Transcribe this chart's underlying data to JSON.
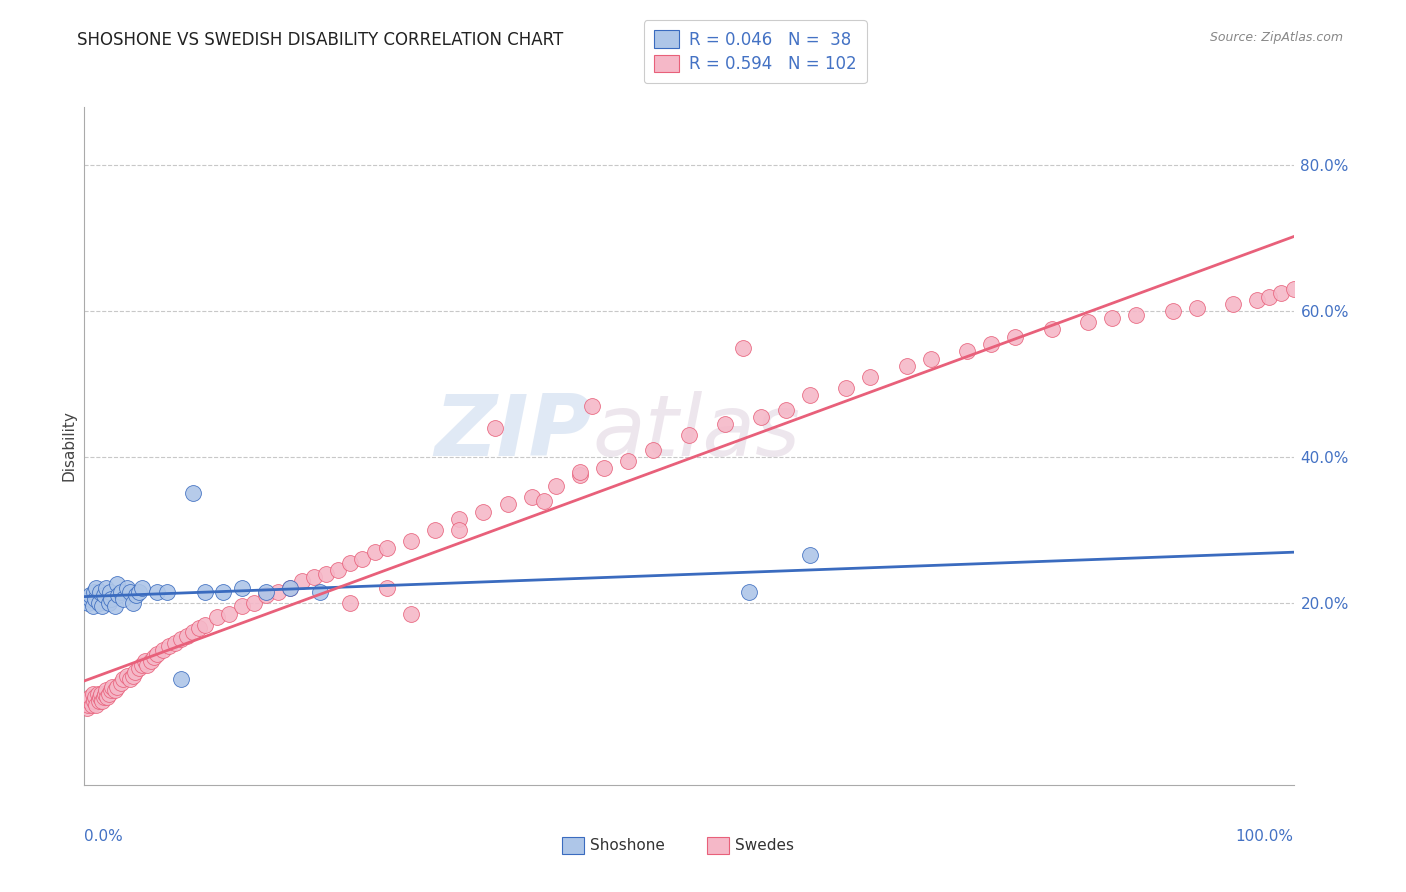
{
  "title": "SHOSHONE VS SWEDISH DISABILITY CORRELATION CHART",
  "source": "Source: ZipAtlas.com",
  "ylabel": "Disability",
  "legend_shoshone_label": "R = 0.046   N =  38",
  "legend_swedes_label": "R = 0.594   N = 102",
  "shoshone_color": "#aec6e8",
  "swedes_color": "#f5b8c8",
  "shoshone_line_color": "#3a6bbf",
  "swedes_line_color": "#e8607a",
  "watermark_zip": "ZIP",
  "watermark_atlas": "atlas",
  "xlim": [
    0.0,
    1.0
  ],
  "ylim": [
    -0.05,
    0.88
  ],
  "ytick_vals": [
    0.2,
    0.4,
    0.6,
    0.8
  ],
  "ytick_labels": [
    "20.0%",
    "40.0%",
    "60.0%",
    "80.0%"
  ],
  "background_color": "#ffffff",
  "grid_color": "#c8c8c8",
  "tick_color": "#4472C4",
  "shoshone_x": [
    0.003,
    0.005,
    0.005,
    0.007,
    0.008,
    0.009,
    0.01,
    0.012,
    0.013,
    0.015,
    0.016,
    0.018,
    0.02,
    0.021,
    0.022,
    0.025,
    0.027,
    0.028,
    0.03,
    0.032,
    0.035,
    0.038,
    0.04,
    0.043,
    0.045,
    0.048,
    0.06,
    0.068,
    0.08,
    0.09,
    0.1,
    0.115,
    0.13,
    0.15,
    0.17,
    0.195,
    0.55,
    0.6
  ],
  "shoshone_y": [
    0.2,
    0.205,
    0.21,
    0.195,
    0.215,
    0.205,
    0.22,
    0.2,
    0.215,
    0.195,
    0.21,
    0.22,
    0.2,
    0.215,
    0.205,
    0.195,
    0.225,
    0.21,
    0.215,
    0.205,
    0.22,
    0.215,
    0.2,
    0.21,
    0.215,
    0.22,
    0.215,
    0.215,
    0.095,
    0.35,
    0.215,
    0.215,
    0.22,
    0.215,
    0.22,
    0.215,
    0.215,
    0.265
  ],
  "swedes_x": [
    0.002,
    0.003,
    0.004,
    0.005,
    0.006,
    0.007,
    0.008,
    0.009,
    0.01,
    0.011,
    0.012,
    0.013,
    0.014,
    0.015,
    0.016,
    0.017,
    0.018,
    0.019,
    0.02,
    0.022,
    0.023,
    0.025,
    0.027,
    0.03,
    0.032,
    0.035,
    0.038,
    0.04,
    0.042,
    0.045,
    0.048,
    0.05,
    0.052,
    0.055,
    0.058,
    0.06,
    0.065,
    0.07,
    0.075,
    0.08,
    0.085,
    0.09,
    0.095,
    0.1,
    0.11,
    0.12,
    0.13,
    0.14,
    0.15,
    0.16,
    0.17,
    0.18,
    0.19,
    0.2,
    0.21,
    0.22,
    0.23,
    0.24,
    0.25,
    0.27,
    0.29,
    0.31,
    0.33,
    0.35,
    0.37,
    0.39,
    0.41,
    0.43,
    0.45,
    0.47,
    0.5,
    0.53,
    0.56,
    0.58,
    0.6,
    0.63,
    0.65,
    0.68,
    0.7,
    0.73,
    0.75,
    0.77,
    0.8,
    0.83,
    0.85,
    0.87,
    0.9,
    0.92,
    0.95,
    0.97,
    0.98,
    0.99,
    1.0,
    0.42,
    0.545,
    0.34,
    0.31,
    0.27,
    0.25,
    0.22,
    0.41,
    0.38
  ],
  "swedes_y": [
    0.055,
    0.06,
    0.065,
    0.07,
    0.06,
    0.075,
    0.065,
    0.07,
    0.06,
    0.075,
    0.065,
    0.07,
    0.075,
    0.065,
    0.07,
    0.075,
    0.08,
    0.07,
    0.075,
    0.08,
    0.085,
    0.08,
    0.085,
    0.09,
    0.095,
    0.1,
    0.095,
    0.1,
    0.105,
    0.11,
    0.115,
    0.12,
    0.115,
    0.12,
    0.125,
    0.13,
    0.135,
    0.14,
    0.145,
    0.15,
    0.155,
    0.16,
    0.165,
    0.17,
    0.18,
    0.185,
    0.195,
    0.2,
    0.21,
    0.215,
    0.22,
    0.23,
    0.235,
    0.24,
    0.245,
    0.255,
    0.26,
    0.27,
    0.275,
    0.285,
    0.3,
    0.315,
    0.325,
    0.335,
    0.345,
    0.36,
    0.375,
    0.385,
    0.395,
    0.41,
    0.43,
    0.445,
    0.455,
    0.465,
    0.485,
    0.495,
    0.51,
    0.525,
    0.535,
    0.545,
    0.555,
    0.565,
    0.575,
    0.585,
    0.59,
    0.595,
    0.6,
    0.605,
    0.61,
    0.615,
    0.62,
    0.625,
    0.63,
    0.47,
    0.55,
    0.44,
    0.3,
    0.185,
    0.22,
    0.2,
    0.38,
    0.34
  ]
}
